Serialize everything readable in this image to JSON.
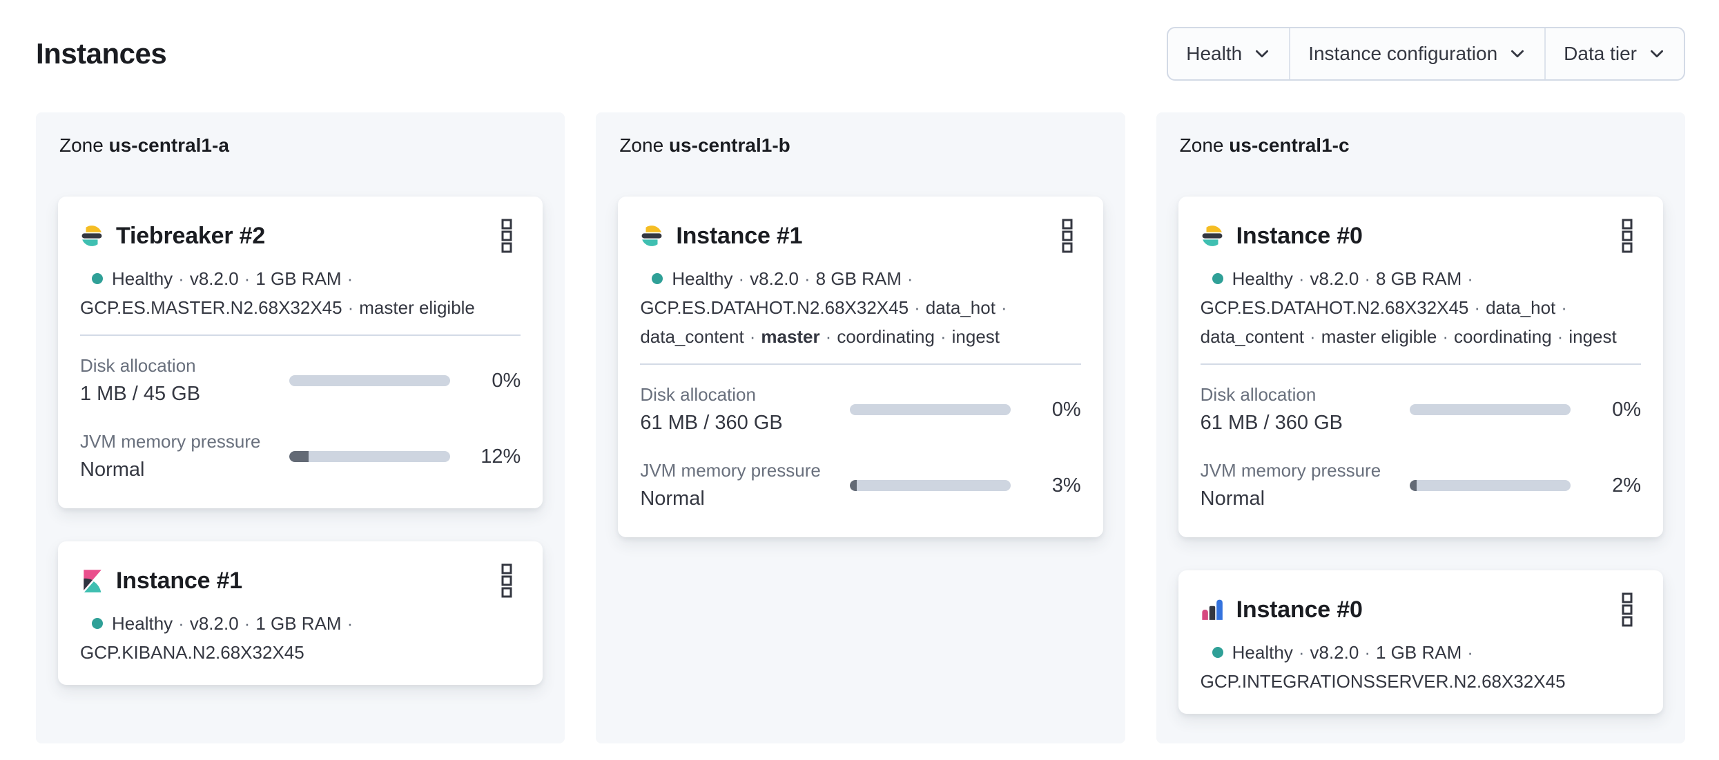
{
  "page": {
    "title": "Instances"
  },
  "ui": {
    "sep": "·"
  },
  "filters": {
    "health": "Health",
    "instance_configuration": "Instance configuration",
    "data_tier": "Data tier"
  },
  "labels": {
    "zone": "Zone",
    "disk": "Disk allocation",
    "jvm": "JVM memory pressure"
  },
  "colors": {
    "health_dot": "#2fa097",
    "bar_track": "#ced5e0",
    "bar_fill": "#636a75",
    "panel_bg": "#f5f7fa",
    "es_yellow": "#f5bd23",
    "es_dark": "#343741",
    "es_teal": "#3fbfb1",
    "kibana_pink": "#ea4f8d",
    "integrations_blue": "#3473de",
    "integrations_pink": "#d6497f"
  },
  "zones": [
    {
      "name": "us-central1-a",
      "cards": [
        {
          "title": "Tiebreaker #2",
          "health": "Healthy",
          "version": "v8.2.0",
          "ram": "1 GB RAM",
          "config": "GCP.ES.MASTER.N2.68X32X45",
          "role1": "master eligible",
          "disk": {
            "value": "1 MB / 45 GB",
            "pct_label": "0%",
            "pct": 0
          },
          "jvm": {
            "value": "Normal",
            "pct_label": "12%",
            "pct": 12
          }
        },
        {
          "title": "Instance #1",
          "health": "Healthy",
          "version": "v8.2.0",
          "ram": "1 GB RAM",
          "config": "GCP.KIBANA.N2.68X32X45"
        }
      ]
    },
    {
      "name": "us-central1-b",
      "cards": [
        {
          "title": "Instance #1",
          "health": "Healthy",
          "version": "v8.2.0",
          "ram": "8 GB RAM",
          "config": "GCP.ES.DATAHOT.N2.68X32X45",
          "role1": "data_hot",
          "role2": "data_content",
          "role3": "master",
          "role4": "coordinating",
          "role5": "ingest",
          "disk": {
            "value": "61 MB / 360 GB",
            "pct_label": "0%",
            "pct": 0
          },
          "jvm": {
            "value": "Normal",
            "pct_label": "3%",
            "pct": 3
          }
        }
      ]
    },
    {
      "name": "us-central1-c",
      "cards": [
        {
          "title": "Instance #0",
          "health": "Healthy",
          "version": "v8.2.0",
          "ram": "8 GB RAM",
          "config": "GCP.ES.DATAHOT.N2.68X32X45",
          "role1": "data_hot",
          "role2": "data_content",
          "role3": "master eligible",
          "role4": "coordinating",
          "role5": "ingest",
          "disk": {
            "value": "61 MB / 360 GB",
            "pct_label": "0%",
            "pct": 0
          },
          "jvm": {
            "value": "Normal",
            "pct_label": "2%",
            "pct": 2
          }
        },
        {
          "title": "Instance #0",
          "health": "Healthy",
          "version": "v8.2.0",
          "ram": "1 GB RAM",
          "config": "GCP.INTEGRATIONSSERVER.N2.68X32X45"
        }
      ]
    }
  ]
}
